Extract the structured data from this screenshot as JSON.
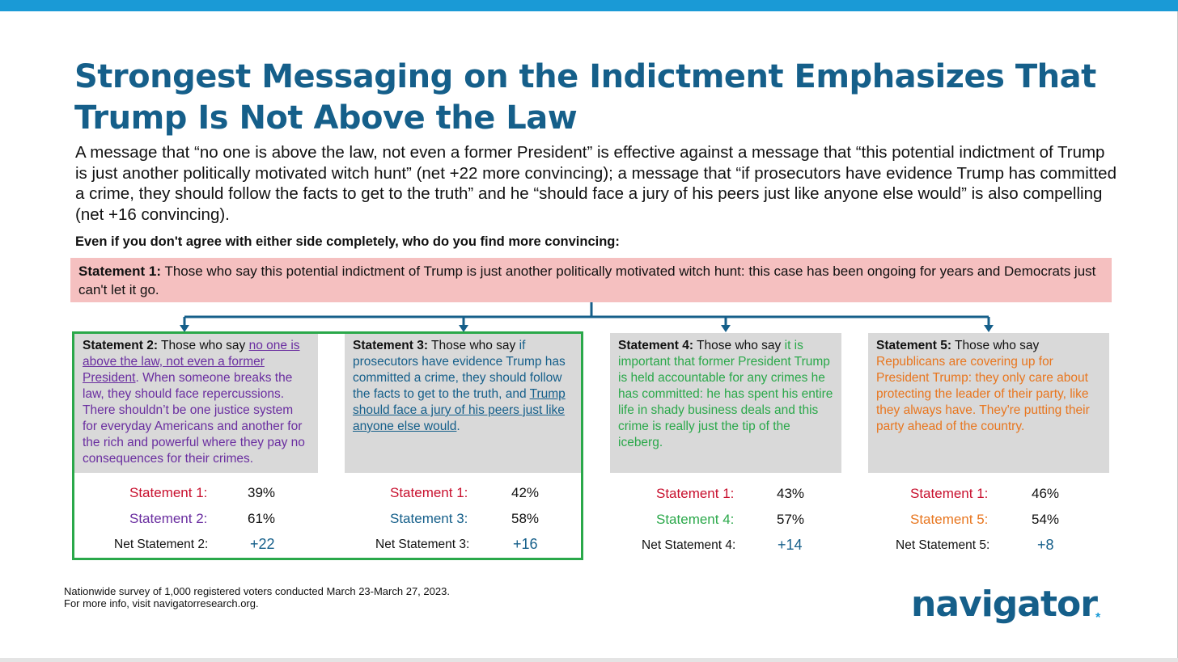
{
  "title": "Strongest Messaging on the Indictment Emphasizes That Trump Is Not Above the Law",
  "subtitle": "A message that “no one is above the law, not even a former President” is effective against a message that “this potential indictment of Trump is just another politically motivated witch hunt” (net +22 more convincing); a message that “if prosecutors have evidence Trump has committed a crime, they should follow the facts to get to the truth” and he “should face a jury of his peers just like anyone else would” is also compelling (net +16 convincing).",
  "question": "Even if you don't agree with either side completely, who do you find more convincing:",
  "statement1": {
    "label": "Statement 1:",
    "text": " Those who say this potential indictment of Trump is just another politically motivated witch hunt: this case has been ongoing for years and Democrats just can't let it go."
  },
  "cards": [
    {
      "label": "Statement 2:",
      "intro": " Those who say ",
      "highlight": "no one is above the law, not even a former President",
      "rest": ". When someone breaks the law, they should face repercussions. There shouldn’t be one justice system for everyday Americans and another for the rich and powerful where they pay no consequences for their crimes.",
      "r1_label": "Statement 1:",
      "r1_value": "39%",
      "r2_label": "Statement 2:",
      "r2_value": "61%",
      "net_label": "Net Statement 2:",
      "net_value": "+22"
    },
    {
      "label": "Statement 3:",
      "intro": " Those who say ",
      "part1": "if prosecutors have evidence Trump has committed a crime, they should follow the facts to get to the truth,",
      "part2": " and ",
      "highlight": "Trump should face a jury of his peers just like anyone else would",
      "end": ".",
      "r1_label": "Statement 1:",
      "r1_value": "42%",
      "r2_label": "Statement 3:",
      "r2_value": "58%",
      "net_label": "Net Statement 3:",
      "net_value": "+16"
    },
    {
      "label": "Statement 4:",
      "intro": " Those who say ",
      "highlight": "it is important that former President Trump is held accountable for any crimes he has committed: he has spent his entire life in shady business deals and this crime is really just the tip of the iceberg.",
      "r1_label": "Statement 1:",
      "r1_value": "43%",
      "r2_label": "Statement 4:",
      "r2_value": "57%",
      "net_label": "Net Statement 4:",
      "net_value": "+14"
    },
    {
      "label": "Statement 5:",
      "intro": " Those who say ",
      "highlight": "Republicans are covering up for President Trump: they only care about protecting the leader of their party, like they always have. They're putting their party ahead of the country.",
      "r1_label": "Statement 1:",
      "r1_value": "46%",
      "r2_label": "Statement 5:",
      "r2_value": "54%",
      "net_label": "Net Statement 5:",
      "net_value": "+8"
    }
  ],
  "footer": {
    "line1": "Nationwide survey of 1,000 registered voters conducted March 23-March 27, 2023.",
    "line2": "For more info, visit navigatorresearch.org."
  },
  "logo": {
    "text": "navigator",
    "mark": "*"
  },
  "colors": {
    "accent_blue": "#155f8a",
    "top_bar": "#1a9ad6",
    "statement1_bg": "#f5c0c0",
    "statement1_red": "#c8102e",
    "statement2_purple": "#6a2ea0",
    "statement4_green": "#2aa84a",
    "statement5_orange": "#e8761f",
    "card_bg": "#d9d9d9"
  }
}
